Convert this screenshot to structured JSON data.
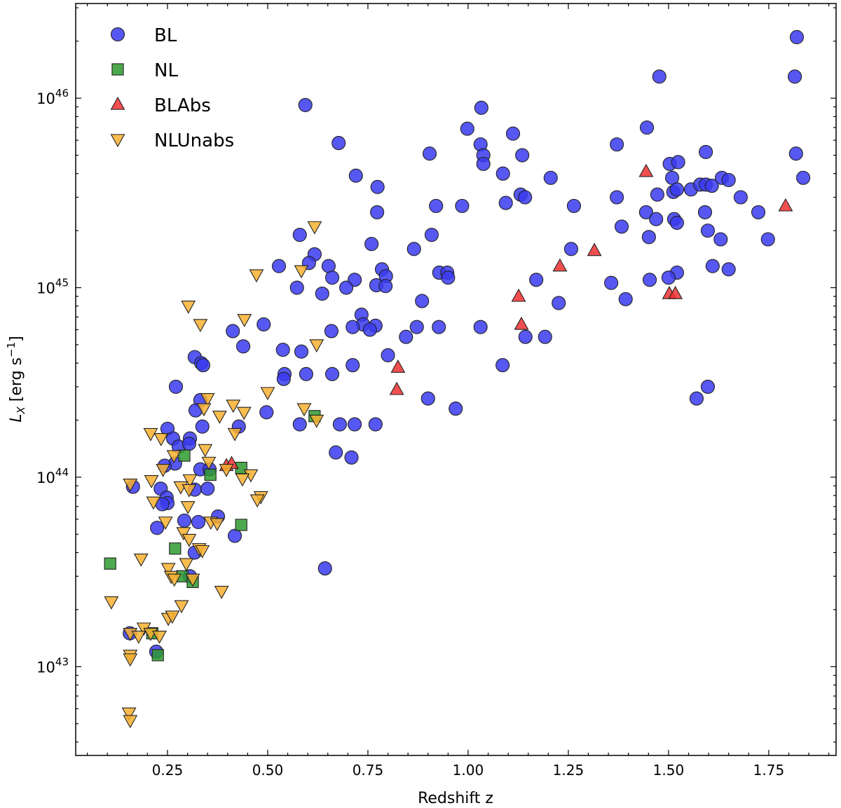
{
  "chart_data": {
    "type": "scatter",
    "title": "",
    "xlabel": "Redshift z",
    "ylabel": "L_X [erg s^-1]",
    "xlim": [
      0.021,
      1.918
    ],
    "ylim": [
      3.4e+42,
      3.16e+46
    ],
    "yscale": "log",
    "grid": false,
    "legend_position": "top-left",
    "x_ticks": [
      "0.25",
      "0.50",
      "0.75",
      "1.00",
      "1.25",
      "1.50",
      "1.75"
    ],
    "y_ticks": [
      {
        "base": "10",
        "exp": "43"
      },
      {
        "base": "10",
        "exp": "44"
      },
      {
        "base": "10",
        "exp": "45"
      },
      {
        "base": "10",
        "exp": "46"
      }
    ],
    "series": [
      {
        "name": "BL",
        "marker": "circle",
        "color": "#3a3aee",
        "points": [
          [
            1.82,
            2.1e+46
          ],
          [
            1.815,
            1.3e+46
          ],
          [
            1.818,
            5.1e+45
          ],
          [
            1.836,
            3.8e+45
          ],
          [
            0.594,
            9.2e+45
          ],
          [
            1.477,
            1.3e+46
          ],
          [
            1.033,
            8.9e+45
          ],
          [
            0.998,
            6.9e+45
          ],
          [
            1.446,
            7e+45
          ],
          [
            1.112,
            6.5e+45
          ],
          [
            0.677,
            5.8e+45
          ],
          [
            0.904,
            5.1e+45
          ],
          [
            1.031,
            5.7e+45
          ],
          [
            1.038,
            5e+45
          ],
          [
            1.038,
            4.5e+45
          ],
          [
            1.135,
            5e+45
          ],
          [
            1.371,
            5.7e+45
          ],
          [
            1.593,
            5.2e+45
          ],
          [
            0.72,
            3.9e+45
          ],
          [
            1.087,
            4e+45
          ],
          [
            1.206,
            3.8e+45
          ],
          [
            0.774,
            3.4e+45
          ],
          [
            0.92,
            2.7e+45
          ],
          [
            0.985,
            2.7e+45
          ],
          [
            1.094,
            2.8e+45
          ],
          [
            1.131,
            3.1e+45
          ],
          [
            1.142,
            3e+45
          ],
          [
            1.264,
            2.7e+45
          ],
          [
            0.773,
            2.5e+45
          ],
          [
            1.371,
            3e+45
          ],
          [
            1.383,
            2.1e+45
          ],
          [
            1.503,
            4.5e+45
          ],
          [
            1.509,
            3.8e+45
          ],
          [
            1.524,
            4.6e+45
          ],
          [
            1.512,
            3.2e+45
          ],
          [
            1.521,
            3.3e+45
          ],
          [
            1.472,
            3.1e+45
          ],
          [
            1.444,
            2.5e+45
          ],
          [
            1.469,
            2.3e+45
          ],
          [
            1.451,
            1.85e+45
          ],
          [
            1.514,
            2.3e+45
          ],
          [
            1.521,
            2.2e+45
          ],
          [
            1.556,
            3.3e+45
          ],
          [
            1.579,
            3.5e+45
          ],
          [
            1.593,
            3.5e+45
          ],
          [
            1.608,
            3.45e+45
          ],
          [
            1.633,
            3.8e+45
          ],
          [
            1.65,
            3.7e+45
          ],
          [
            1.68,
            3e+45
          ],
          [
            1.724,
            2.5e+45
          ],
          [
            1.591,
            2.5e+45
          ],
          [
            1.598,
            2e+45
          ],
          [
            1.63,
            1.8e+45
          ],
          [
            1.748,
            1.8e+45
          ],
          [
            1.61,
            1.3e+45
          ],
          [
            1.65,
            1.25e+45
          ],
          [
            1.521,
            1.2e+45
          ],
          [
            1.5,
            1.13e+45
          ],
          [
            1.453,
            1.1e+45
          ],
          [
            1.357,
            1.06e+45
          ],
          [
            1.393,
            8.7e+44
          ],
          [
            1.17,
            1.1e+45
          ],
          [
            1.226,
            8.3e+44
          ],
          [
            1.257,
            1.6e+45
          ],
          [
            0.865,
            1.6e+45
          ],
          [
            0.909,
            1.9e+45
          ],
          [
            0.759,
            1.7e+45
          ],
          [
            0.58,
            1.9e+45
          ],
          [
            0.617,
            1.5e+45
          ],
          [
            0.603,
            1.35e+45
          ],
          [
            0.652,
            1.3e+45
          ],
          [
            0.528,
            1.3e+45
          ],
          [
            0.785,
            1.25e+45
          ],
          [
            0.795,
            1.15e+45
          ],
          [
            0.928,
            1.2e+45
          ],
          [
            0.948,
            1.2e+45
          ],
          [
            0.95,
            1.13e+45
          ],
          [
            0.661,
            1.13e+45
          ],
          [
            0.717,
            1.1e+45
          ],
          [
            0.771,
            1.03e+45
          ],
          [
            0.794,
            1.02e+45
          ],
          [
            0.696,
            1e+45
          ],
          [
            0.573,
            1e+45
          ],
          [
            0.636,
            9.3e+44
          ],
          [
            0.885,
            8.5e+44
          ],
          [
            0.734,
            7.2e+44
          ],
          [
            0.738,
            6.4e+44
          ],
          [
            0.769,
            6.3e+44
          ],
          [
            0.755,
            6e+44
          ],
          [
            0.712,
            6.2e+44
          ],
          [
            0.659,
            5.9e+44
          ],
          [
            0.49,
            6.4e+44
          ],
          [
            0.413,
            5.9e+44
          ],
          [
            0.439,
            4.9e+44
          ],
          [
            0.538,
            4.7e+44
          ],
          [
            0.584,
            4.6e+44
          ],
          [
            0.845,
            5.5e+44
          ],
          [
            0.872,
            6.2e+44
          ],
          [
            0.927,
            6.2e+44
          ],
          [
            1.031,
            6.2e+44
          ],
          [
            1.143,
            5.5e+44
          ],
          [
            1.192,
            5.5e+44
          ],
          [
            0.8,
            4.4e+44
          ],
          [
            0.318,
            4.3e+44
          ],
          [
            0.334,
            4e+44
          ],
          [
            0.339,
            3.9e+44
          ],
          [
            0.712,
            3.9e+44
          ],
          [
            1.086,
            3.9e+44
          ],
          [
            0.542,
            3.5e+44
          ],
          [
            0.54,
            3.3e+44
          ],
          [
            0.596,
            3.5e+44
          ],
          [
            0.661,
            3.5e+44
          ],
          [
            0.271,
            3e+44
          ],
          [
            0.9,
            2.6e+44
          ],
          [
            0.969,
            2.3e+44
          ],
          [
            0.497,
            2.2e+44
          ],
          [
            1.57,
            2.6e+44
          ],
          [
            1.598,
            3e+44
          ],
          [
            0.332,
            2.55e+44
          ],
          [
            0.32,
            2.25e+44
          ],
          [
            0.58,
            1.9e+44
          ],
          [
            0.68,
            1.9e+44
          ],
          [
            0.717,
            1.9e+44
          ],
          [
            0.769,
            1.9e+44
          ],
          [
            0.337,
            1.85e+44
          ],
          [
            0.428,
            1.85e+44
          ],
          [
            0.25,
            1.8e+44
          ],
          [
            0.306,
            1.6e+44
          ],
          [
            0.264,
            1.6e+44
          ],
          [
            0.278,
            1.45e+44
          ],
          [
            0.67,
            1.35e+44
          ],
          [
            0.709,
            1.27e+44
          ],
          [
            0.304,
            1.5e+44
          ],
          [
            0.269,
            1.18e+44
          ],
          [
            0.243,
            1.15e+44
          ],
          [
            0.332,
            1.1e+44
          ],
          [
            0.355,
            1.1e+44
          ],
          [
            0.164,
            8.9e+43
          ],
          [
            0.233,
            8.7e+43
          ],
          [
            0.318,
            8.6e+43
          ],
          [
            0.35,
            8.7e+43
          ],
          [
            0.248,
            7.8e+43
          ],
          [
            0.25,
            7.3e+43
          ],
          [
            0.237,
            7.2e+43
          ],
          [
            0.292,
            5.9e+43
          ],
          [
            0.327,
            5.8e+43
          ],
          [
            0.376,
            6.2e+43
          ],
          [
            0.418,
            4.9e+43
          ],
          [
            0.224,
            5.4e+43
          ],
          [
            0.318,
            4e+43
          ],
          [
            0.306,
            3e+43
          ],
          [
            0.643,
            3.3e+43
          ],
          [
            0.156,
            1.5e+43
          ],
          [
            0.222,
            1.2e+43
          ]
        ]
      },
      {
        "name": "NL",
        "marker": "square",
        "color": "#2e9a2e",
        "points": [
          [
            0.107,
            3.5e+43
          ],
          [
            0.212,
            1.5e+43
          ],
          [
            0.226,
            1.15e+43
          ],
          [
            0.292,
            1.3e+44
          ],
          [
            0.434,
            1.12e+44
          ],
          [
            0.357,
            1.03e+44
          ],
          [
            0.434,
            5.6e+43
          ],
          [
            0.269,
            4.2e+43
          ],
          [
            0.287,
            3e+43
          ],
          [
            0.313,
            2.8e+43
          ],
          [
            0.617,
            2.1e+44
          ]
        ]
      },
      {
        "name": "BLAbs",
        "marker": "triangle-up",
        "color": "#ee3030",
        "points": [
          [
            1.444,
            4.1e+45
          ],
          [
            1.792,
            2.7e+45
          ],
          [
            1.315,
            1.57e+45
          ],
          [
            1.229,
            1.3e+45
          ],
          [
            1.126,
            9e+44
          ],
          [
            1.133,
            6.4e+44
          ],
          [
            1.502,
            9.3e+44
          ],
          [
            1.517,
            9.3e+44
          ],
          [
            0.825,
            3.8e+44
          ],
          [
            0.822,
            2.9e+44
          ],
          [
            0.397,
            1.15e+44
          ],
          [
            0.41,
            1.18e+44
          ]
        ]
      },
      {
        "name": "NLUnabs",
        "marker": "triangle-down",
        "color": "#f7b030",
        "points": [
          [
            0.617,
            2.1e+45
          ],
          [
            0.472,
            1.17e+45
          ],
          [
            0.584,
            1.23e+45
          ],
          [
            0.302,
            8e+44
          ],
          [
            0.332,
            6.4e+44
          ],
          [
            0.442,
            6.8e+44
          ],
          [
            0.622,
            5e+44
          ],
          [
            0.5,
            2.8e+44
          ],
          [
            0.35,
            2.6e+44
          ],
          [
            0.414,
            2.4e+44
          ],
          [
            0.441,
            2.2e+44
          ],
          [
            0.591,
            2.3e+44
          ],
          [
            0.341,
            2.3e+44
          ],
          [
            0.38,
            2.1e+44
          ],
          [
            0.622,
            2e+44
          ],
          [
            0.418,
            1.7e+44
          ],
          [
            0.208,
            1.7e+44
          ],
          [
            0.234,
            1.6e+44
          ],
          [
            0.344,
            1.4e+44
          ],
          [
            0.353,
            1.2e+44
          ],
          [
            0.397,
            1.1e+44
          ],
          [
            0.239,
            1.1e+44
          ],
          [
            0.266,
            1.3e+44
          ],
          [
            0.306,
            9.7e+43
          ],
          [
            0.458,
            1.03e+44
          ],
          [
            0.437,
            9.8e+43
          ],
          [
            0.21,
            9.6e+43
          ],
          [
            0.157,
            9.2e+43
          ],
          [
            0.283,
            8.9e+43
          ],
          [
            0.304,
            8.6e+43
          ],
          [
            0.483,
            7.9e+43
          ],
          [
            0.474,
            7.6e+43
          ],
          [
            0.215,
            7.4e+43
          ],
          [
            0.301,
            7e+43
          ],
          [
            0.245,
            5.8e+43
          ],
          [
            0.358,
            5.8e+43
          ],
          [
            0.374,
            5.7e+43
          ],
          [
            0.29,
            5.1e+43
          ],
          [
            0.304,
            4.7e+43
          ],
          [
            0.329,
            4.2e+43
          ],
          [
            0.337,
            4.1e+43
          ],
          [
            0.184,
            3.7e+43
          ],
          [
            0.252,
            3.3e+43
          ],
          [
            0.297,
            3.5e+43
          ],
          [
            0.259,
            3e+43
          ],
          [
            0.313,
            2.9e+43
          ],
          [
            0.267,
            2.9e+43
          ],
          [
            0.385,
            2.5e+43
          ],
          [
            0.285,
            2.1e+43
          ],
          [
            0.252,
            1.8e+43
          ],
          [
            0.262,
            1.85e+43
          ],
          [
            0.11,
            2.2e+43
          ],
          [
            0.191,
            1.6e+43
          ],
          [
            0.157,
            1.5e+43
          ],
          [
            0.208,
            1.5e+43
          ],
          [
            0.178,
            1.45e+43
          ],
          [
            0.23,
            1.45e+43
          ],
          [
            0.157,
            1.15e+43
          ],
          [
            0.157,
            1.1e+43
          ],
          [
            0.154,
            5.7e+42
          ],
          [
            0.157,
            5.2e+42
          ]
        ]
      }
    ]
  }
}
